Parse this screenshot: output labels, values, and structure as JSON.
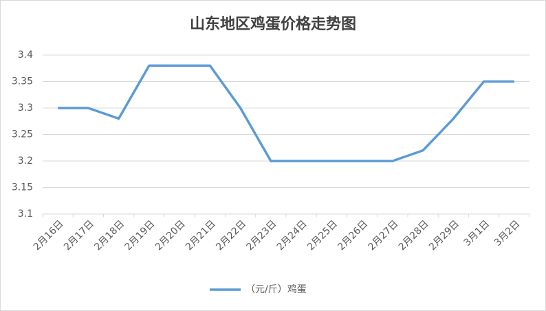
{
  "chart_data": {
    "type": "line",
    "title": "山东地区鸡蛋价格走势图",
    "categories": [
      "2月16日",
      "2月17日",
      "2月18日",
      "2月19日",
      "2月20日",
      "2月21日",
      "2月22日",
      "2月23日",
      "2月24日",
      "2月25日",
      "2月26日",
      "2月27日",
      "2月28日",
      "2月29日",
      "3月1日",
      "3月2日"
    ],
    "series": [
      {
        "name": "（元/斤）鸡蛋",
        "color": "#5b9bd5",
        "values": [
          3.3,
          3.3,
          3.28,
          3.38,
          3.38,
          3.38,
          3.3,
          3.2,
          3.2,
          3.2,
          3.2,
          3.2,
          3.22,
          3.28,
          3.35,
          3.35
        ]
      }
    ],
    "ylim": [
      3.1,
      3.4
    ],
    "yticks": [
      3.1,
      3.15,
      3.2,
      3.25,
      3.3,
      3.35,
      3.4
    ],
    "grid": true,
    "legend": "bottom"
  }
}
